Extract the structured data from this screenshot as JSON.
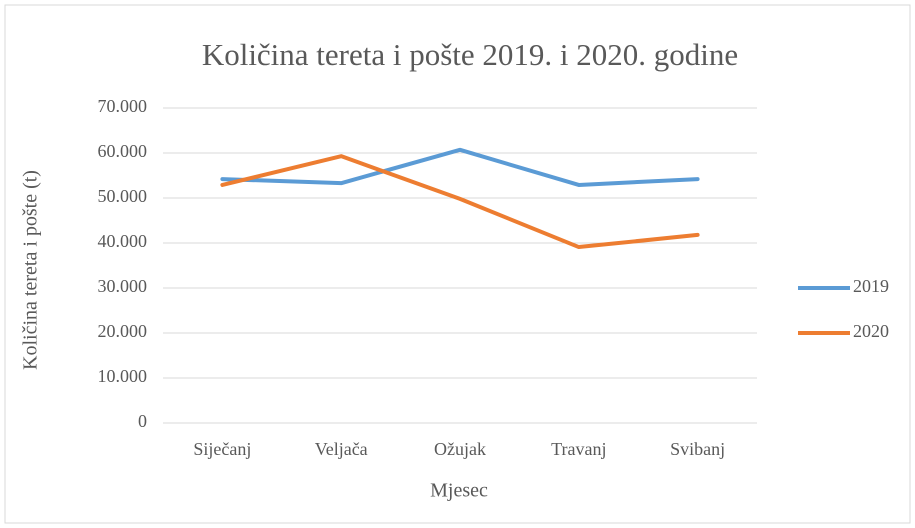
{
  "chart_data": {
    "type": "line",
    "title": "Količina tereta i pošte 2019. i 2020. godine",
    "x_label": "Mjesec",
    "y_label": "Količina tereta i pošte (t)",
    "categories": [
      "Siječanj",
      "Veljača",
      "Ožujak",
      "Travanj",
      "Svibanj"
    ],
    "series": [
      {
        "name": "2019",
        "color": "#5b9bd5",
        "values": [
          54200,
          53300,
          60700,
          52900,
          54200
        ]
      },
      {
        "name": "2020",
        "color": "#ed7d31",
        "values": [
          52900,
          59300,
          49800,
          39100,
          41800
        ]
      }
    ],
    "ylim": [
      0,
      70000
    ],
    "yticks": [
      0,
      {
        "value": 10000,
        "label": "10.000"
      },
      {
        "value": 20000,
        "label": "20.000"
      },
      {
        "value": 30000,
        "label": "30.000"
      },
      {
        "value": 40000,
        "label": "40.000"
      },
      {
        "value": 50000,
        "label": "50.000"
      },
      {
        "value": 60000,
        "label": "60.000"
      },
      {
        "value": 70000,
        "label": "70.000"
      }
    ],
    "grid": true,
    "legend": "right"
  }
}
